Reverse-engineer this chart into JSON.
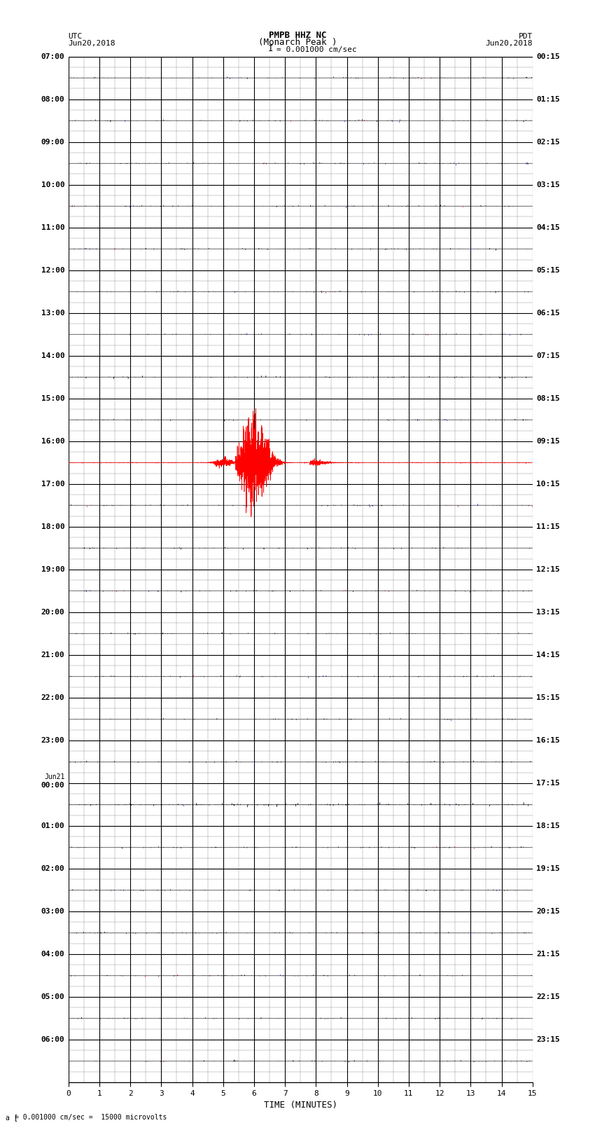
{
  "title_line1": "PMPB HHZ NC",
  "title_line2": "(Monarch Peak )",
  "scale_label": "I = 0.001000 cm/sec",
  "left_label_top": "UTC",
  "left_label_date": "Jun20,2018",
  "right_label_top": "PDT",
  "right_label_date": "Jun20,2018",
  "bottom_label": "TIME (MINUTES)",
  "caption": "= 0.001000 cm/sec =  15000 microvolts",
  "caption_prefix": "a [",
  "utc_times": [
    "07:00",
    "08:00",
    "09:00",
    "10:00",
    "11:00",
    "12:00",
    "13:00",
    "14:00",
    "15:00",
    "16:00",
    "17:00",
    "18:00",
    "19:00",
    "20:00",
    "21:00",
    "22:00",
    "23:00",
    "Jun21\n00:00",
    "01:00",
    "02:00",
    "03:00",
    "04:00",
    "05:00",
    "06:00"
  ],
  "pdt_times": [
    "00:15",
    "01:15",
    "02:15",
    "03:15",
    "04:15",
    "05:15",
    "06:15",
    "07:15",
    "08:15",
    "09:15",
    "10:15",
    "11:15",
    "12:15",
    "13:15",
    "14:15",
    "15:15",
    "16:15",
    "17:15",
    "18:15",
    "19:15",
    "20:15",
    "21:15",
    "22:15",
    "23:15"
  ],
  "num_rows": 24,
  "minutes_per_row": 15,
  "bg_color": "#ffffff",
  "grid_color_major": "#000000",
  "grid_color_minor": "#888888",
  "signal_color_normal": "#000000",
  "signal_color_red": "#ff0000",
  "signal_color_blue": "#0000cc",
  "seismic_row": 9,
  "noise_amplitude": 0.004,
  "seismic_amplitude": 0.45,
  "figwidth": 8.5,
  "figheight": 16.13
}
